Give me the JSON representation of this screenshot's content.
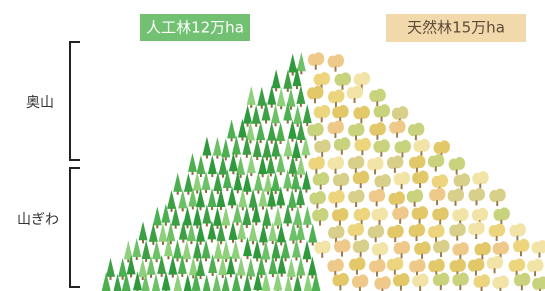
{
  "labels": {
    "artificial": "人工林12万ha",
    "natural": "天然林15万ha"
  },
  "zones": {
    "upper": "奥山",
    "lower": "山ぎわ"
  }
}
